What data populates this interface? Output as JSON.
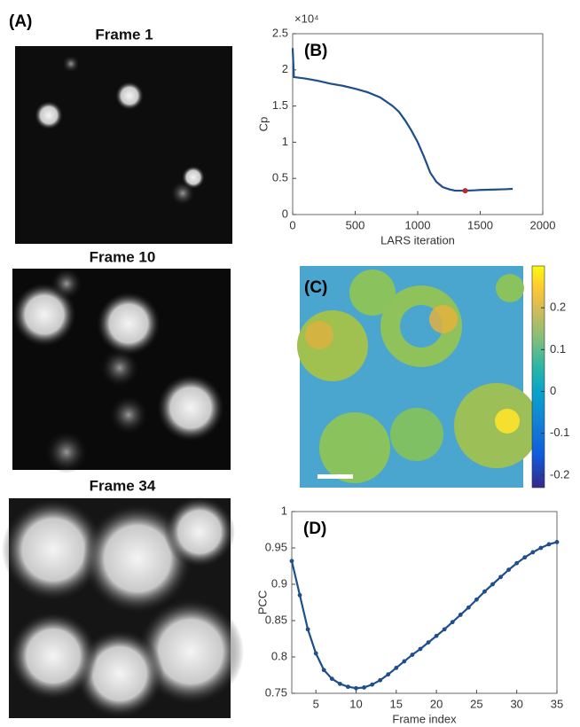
{
  "chart_data": [
    {
      "type": "image",
      "label": "(A)",
      "frames": [
        "Frame 1",
        "Frame 10",
        "Frame 34"
      ]
    },
    {
      "type": "line",
      "label": "(B)",
      "x_label": "LARS iteration",
      "y_label": "Cp",
      "y_exponent_label": "×10⁴",
      "x": [
        0,
        10,
        100,
        200,
        300,
        400,
        500,
        600,
        700,
        800,
        850,
        900,
        950,
        1000,
        1050,
        1100,
        1150,
        1200,
        1250,
        1300,
        1380,
        1450,
        1500,
        1600,
        1700,
        1760
      ],
      "series": [
        {
          "color": "#1f4e8c",
          "values": [
            2.3,
            1.9,
            1.88,
            1.85,
            1.81,
            1.78,
            1.74,
            1.69,
            1.62,
            1.5,
            1.42,
            1.3,
            1.16,
            1.0,
            0.8,
            0.58,
            0.45,
            0.38,
            0.35,
            0.33,
            0.33,
            0.335,
            0.34,
            0.345,
            0.35,
            0.355
          ]
        }
      ],
      "highlight": {
        "x": 1380,
        "y": 0.33,
        "color": "#c0262d"
      },
      "xlim": [
        0,
        2000
      ],
      "xticks": [
        0,
        500,
        1000,
        1500,
        2000
      ],
      "ylim": [
        0,
        2.5
      ],
      "yticks": [
        0,
        0.5,
        1,
        1.5,
        2,
        2.5
      ]
    },
    {
      "type": "heatmap",
      "label": "(C)",
      "clim": [
        -0.23,
        0.3
      ],
      "cticks": [
        -0.2,
        -0.1,
        0,
        0.1,
        0.2
      ]
    },
    {
      "type": "line",
      "label": "(D)",
      "x_label": "Frame index",
      "y_label": "PCC",
      "markers": true,
      "x": [
        2,
        3,
        4,
        5,
        6,
        7,
        8,
        9,
        10,
        11,
        12,
        13,
        14,
        15,
        16,
        17,
        18,
        19,
        20,
        21,
        22,
        23,
        24,
        25,
        26,
        27,
        28,
        29,
        30,
        31,
        32,
        33,
        34,
        35
      ],
      "series": [
        {
          "color": "#1f4e8c",
          "values": [
            0.932,
            0.885,
            0.838,
            0.805,
            0.782,
            0.77,
            0.763,
            0.759,
            0.757,
            0.758,
            0.762,
            0.768,
            0.776,
            0.785,
            0.794,
            0.803,
            0.811,
            0.82,
            0.829,
            0.838,
            0.848,
            0.858,
            0.868,
            0.879,
            0.89,
            0.9,
            0.91,
            0.92,
            0.929,
            0.937,
            0.944,
            0.95,
            0.955,
            0.958
          ]
        }
      ],
      "xlim": [
        2,
        35
      ],
      "xticks": [
        5,
        10,
        15,
        20,
        25,
        30,
        35
      ],
      "ylim": [
        0.75,
        1
      ],
      "yticks": [
        0.75,
        0.8,
        0.85,
        0.9,
        0.95,
        1
      ]
    }
  ]
}
